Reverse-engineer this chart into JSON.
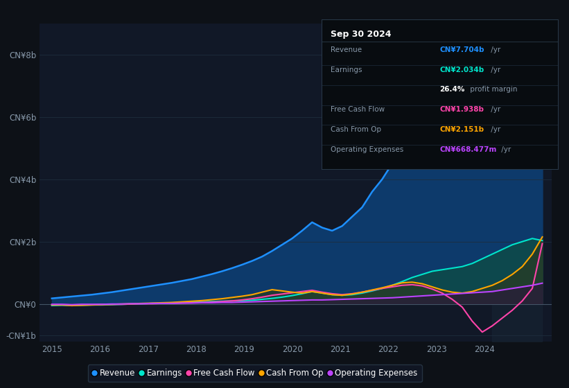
{
  "background_color": "#0d1117",
  "plot_bg_color": "#111827",
  "grid_color": "#1e2d3d",
  "ylim": [
    -1.2,
    9.0
  ],
  "xlim": [
    2014.75,
    2025.4
  ],
  "yticks": [
    -1,
    0,
    2,
    4,
    6,
    8
  ],
  "ytick_labels": [
    "-CN¥1b",
    "CN¥0",
    "CN¥2b",
    "CN¥4b",
    "CN¥6b",
    "CN¥8b"
  ],
  "xticks": [
    2015,
    2016,
    2017,
    2018,
    2019,
    2020,
    2021,
    2022,
    2023,
    2024
  ],
  "revenue_color": "#1e90ff",
  "earnings_color": "#00e5cc",
  "fcf_color": "#ff44aa",
  "cashfromop_color": "#ffa500",
  "opex_color": "#bb44ff",
  "title_box_bg": "#0a0a0a",
  "title_box_date": "Sep 30 2024",
  "info_rows": [
    {
      "label": "Revenue",
      "value": "CN¥7.704b",
      "unit": " /yr",
      "color": "#1e90ff"
    },
    {
      "label": "Earnings",
      "value": "CN¥2.034b",
      "unit": " /yr",
      "color": "#00e5cc"
    },
    {
      "label": "",
      "value": "26.4%",
      "unit": " profit margin",
      "color": "#ffffff"
    },
    {
      "label": "Free Cash Flow",
      "value": "CN¥1.938b",
      "unit": " /yr",
      "color": "#ff44aa"
    },
    {
      "label": "Cash From Op",
      "value": "CN¥2.151b",
      "unit": " /yr",
      "color": "#ffa500"
    },
    {
      "label": "Operating Expenses",
      "value": "CN¥668.477m",
      "unit": " /yr",
      "color": "#bb44ff"
    }
  ],
  "legend_items": [
    {
      "label": "Revenue",
      "color": "#1e90ff"
    },
    {
      "label": "Earnings",
      "color": "#00e5cc"
    },
    {
      "label": "Free Cash Flow",
      "color": "#ff44aa"
    },
    {
      "label": "Cash From Op",
      "color": "#ffa500"
    },
    {
      "label": "Operating Expenses",
      "color": "#bb44ff"
    }
  ],
  "revenue": [
    0.18,
    0.21,
    0.24,
    0.27,
    0.3,
    0.34,
    0.38,
    0.43,
    0.48,
    0.53,
    0.58,
    0.63,
    0.68,
    0.74,
    0.8,
    0.88,
    0.96,
    1.05,
    1.15,
    1.26,
    1.38,
    1.52,
    1.7,
    1.9,
    2.1,
    2.35,
    2.62,
    2.45,
    2.35,
    2.5,
    2.8,
    3.1,
    3.6,
    4.0,
    4.5,
    4.9,
    5.3,
    5.5,
    5.6,
    5.5,
    5.6,
    5.8,
    6.0,
    6.2,
    6.4,
    6.6,
    6.9,
    7.2,
    7.5,
    7.704
  ],
  "earnings": [
    -0.05,
    -0.04,
    -0.05,
    -0.04,
    -0.03,
    -0.03,
    -0.02,
    -0.01,
    0.0,
    0.01,
    0.02,
    0.03,
    0.04,
    0.05,
    0.06,
    0.07,
    0.08,
    0.09,
    0.1,
    0.11,
    0.12,
    0.15,
    0.18,
    0.22,
    0.27,
    0.33,
    0.4,
    0.35,
    0.3,
    0.28,
    0.3,
    0.35,
    0.42,
    0.5,
    0.6,
    0.72,
    0.85,
    0.95,
    1.05,
    1.1,
    1.15,
    1.2,
    1.3,
    1.45,
    1.6,
    1.75,
    1.9,
    2.0,
    2.1,
    2.034
  ],
  "fcf": [
    -0.02,
    -0.02,
    -0.03,
    -0.02,
    -0.02,
    -0.01,
    -0.01,
    -0.01,
    0.0,
    0.01,
    0.01,
    0.02,
    0.02,
    0.03,
    0.04,
    0.05,
    0.06,
    0.08,
    0.1,
    0.13,
    0.17,
    0.22,
    0.28,
    0.32,
    0.36,
    0.4,
    0.44,
    0.38,
    0.33,
    0.3,
    0.33,
    0.38,
    0.44,
    0.5,
    0.55,
    0.6,
    0.62,
    0.58,
    0.48,
    0.35,
    0.15,
    -0.1,
    -0.55,
    -0.9,
    -0.7,
    -0.45,
    -0.2,
    0.1,
    0.5,
    1.938
  ],
  "cashfromop": [
    -0.03,
    -0.03,
    -0.05,
    -0.04,
    -0.03,
    -0.02,
    -0.01,
    0.0,
    0.01,
    0.02,
    0.03,
    0.04,
    0.05,
    0.07,
    0.09,
    0.11,
    0.14,
    0.17,
    0.21,
    0.25,
    0.3,
    0.38,
    0.46,
    0.42,
    0.38,
    0.35,
    0.4,
    0.35,
    0.3,
    0.28,
    0.32,
    0.38,
    0.45,
    0.52,
    0.6,
    0.68,
    0.7,
    0.65,
    0.55,
    0.45,
    0.38,
    0.35,
    0.4,
    0.5,
    0.6,
    0.75,
    0.95,
    1.2,
    1.6,
    2.151
  ],
  "opex": [
    -0.01,
    -0.01,
    -0.02,
    -0.01,
    -0.01,
    -0.01,
    0.0,
    0.0,
    0.01,
    0.01,
    0.02,
    0.02,
    0.02,
    0.03,
    0.03,
    0.04,
    0.04,
    0.05,
    0.05,
    0.06,
    0.07,
    0.08,
    0.09,
    0.1,
    0.11,
    0.12,
    0.13,
    0.13,
    0.14,
    0.15,
    0.16,
    0.17,
    0.18,
    0.19,
    0.2,
    0.22,
    0.24,
    0.26,
    0.28,
    0.3,
    0.32,
    0.34,
    0.36,
    0.38,
    0.4,
    0.45,
    0.5,
    0.55,
    0.6,
    0.668
  ]
}
